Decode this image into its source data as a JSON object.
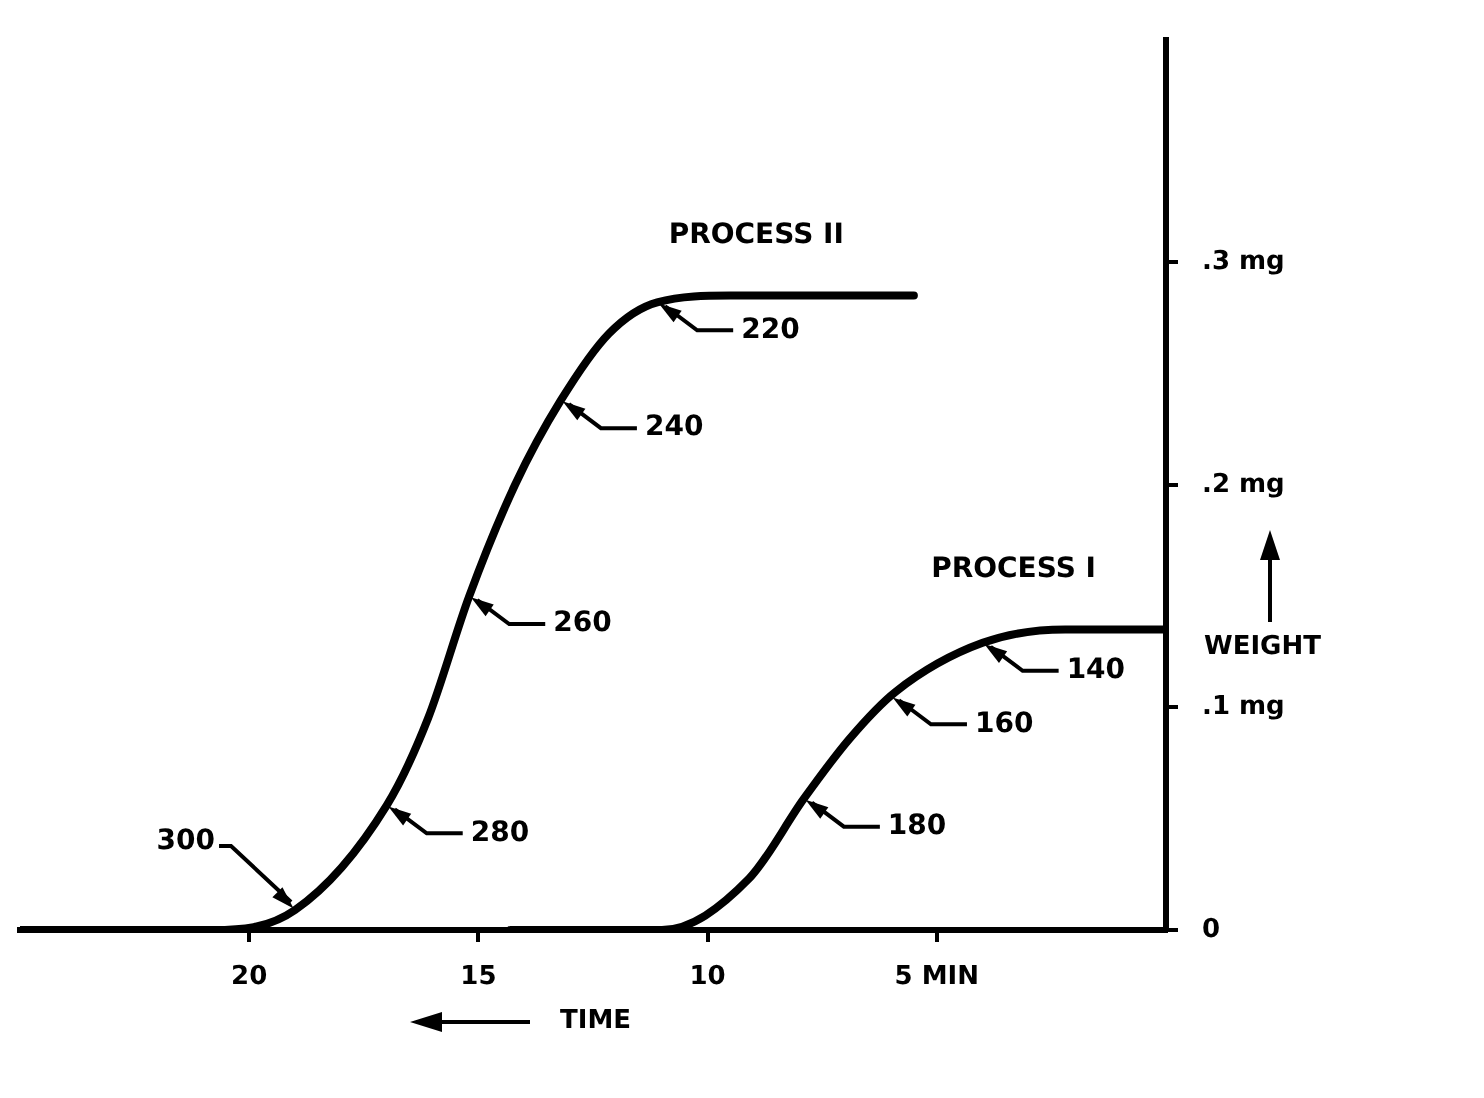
{
  "chart_data": {
    "type": "line",
    "xlabel": "TIME",
    "ylabel": "WEIGHT",
    "xlim": [
      25,
      0
    ],
    "ylim": [
      0,
      0.4
    ],
    "xticks": [
      20,
      15,
      10,
      {
        "value": 5,
        "label": "5 MIN"
      }
    ],
    "yticks": [
      0,
      {
        "value": 0.1,
        "label": ".1 mg"
      },
      {
        "value": 0.2,
        "label": ".2 mg"
      },
      {
        "value": 0.3,
        "label": ".3 mg"
      }
    ],
    "grid": false,
    "legend": false,
    "marker": "none",
    "line_style": "solid",
    "series": [
      {
        "name": "PROCESS II",
        "color": "#000000",
        "x": [
          25,
          20.8,
          19.0,
          17.0,
          16.1,
          15.2,
          14.2,
          13.2,
          12.15,
          11.1,
          9.5,
          5.5
        ],
        "values": [
          0,
          0,
          0.009,
          0.056,
          0.095,
          0.15,
          0.2,
          0.238,
          0.268,
          0.282,
          0.285,
          0.285
        ]
      },
      {
        "name": "PROCESS I",
        "color": "#000000",
        "x": [
          14.3,
          11.0,
          9.1,
          7.9,
          6.9,
          5.9,
          4.0,
          2.2,
          0
        ],
        "values": [
          0,
          0,
          0.023,
          0.059,
          0.086,
          0.107,
          0.129,
          0.135,
          0.135
        ]
      }
    ],
    "annotations": [
      {
        "text": "300",
        "x": 19.0,
        "y": 0.009
      },
      {
        "text": "280",
        "x": 17.0,
        "y": 0.056
      },
      {
        "text": "260",
        "x": 15.2,
        "y": 0.15
      },
      {
        "text": "240",
        "x": 13.2,
        "y": 0.238
      },
      {
        "text": "220",
        "x": 11.1,
        "y": 0.282
      },
      {
        "text": "180",
        "x": 7.9,
        "y": 0.059
      },
      {
        "text": "160",
        "x": 6.0,
        "y": 0.105
      },
      {
        "text": "140",
        "x": 4.0,
        "y": 0.129
      }
    ]
  }
}
